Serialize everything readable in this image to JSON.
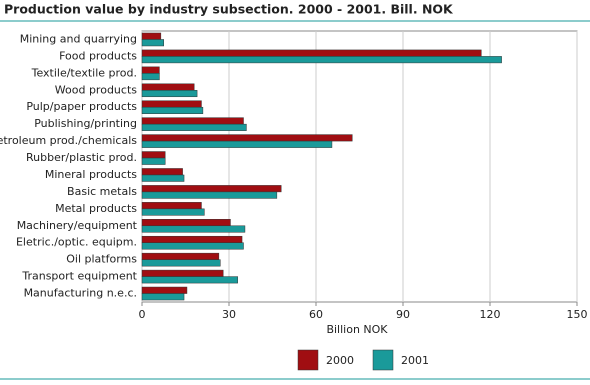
{
  "chart_data": {
    "type": "hbar",
    "title": "Production value by industry subsection. 2000 - 2001. Bill. NOK",
    "x_label": "Billion NOK",
    "categories": [
      "Mining and quarrying",
      "Food products",
      "Textile/textile prod.",
      "Wood products",
      "Pulp/paper products",
      "Publishing/printing",
      "Petroleum prod./chemicals",
      "Rubber/plastic prod.",
      "Mineral products",
      "Basic metals",
      "Metal products",
      "Machinery/equipment",
      "Eletric./optic. equipm.",
      "Oil platforms",
      "Transport equipment",
      "Manufacturing n.e.c."
    ],
    "series": [
      {
        "name": "2000",
        "color": "#a00e12",
        "values": [
          6.5,
          117,
          6,
          18,
          20.5,
          35,
          72.5,
          8,
          14,
          48,
          20.5,
          30.5,
          34.5,
          26.5,
          28,
          15.5
        ]
      },
      {
        "name": "2001",
        "color": "#1a9a9a",
        "values": [
          7.5,
          124,
          6,
          19,
          21,
          36,
          65.5,
          8,
          14.5,
          46.5,
          21.5,
          35.5,
          35,
          27,
          33,
          14.5
        ]
      }
    ],
    "xlim": [
      0,
      150
    ],
    "xticks": [
      0,
      30,
      60,
      90,
      120,
      150
    ],
    "grid": true,
    "legend": "bottom"
  }
}
